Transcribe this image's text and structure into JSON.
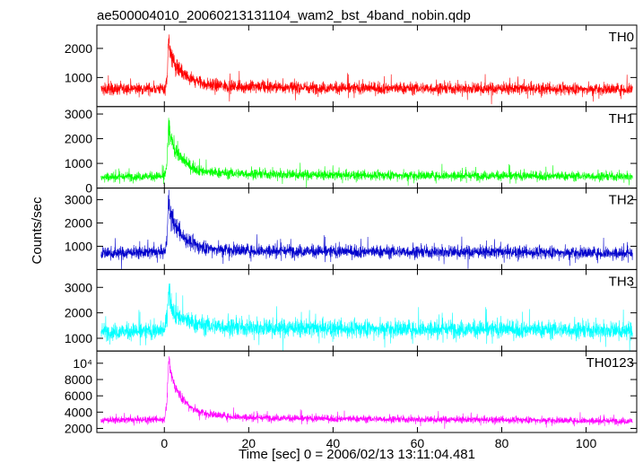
{
  "chart_data": {
    "type": "line",
    "title": "ae500004010_20060213131104_wam2_bst_4band_nobin.qdp",
    "xlabel": "Time [sec] 0 = 2006/02/13 13:11:04.481",
    "ylabel": "Counts/sec",
    "xlim": [
      -16,
      112
    ],
    "xticks": [
      0,
      20,
      40,
      60,
      80,
      100
    ],
    "xtick_labels": [
      "0",
      "20",
      "40",
      "60",
      "80",
      "100"
    ],
    "grid": false,
    "panels": [
      {
        "name": "TH0",
        "color": "#ff0000",
        "ylim": [
          0,
          2800
        ],
        "yticks": [
          1000,
          2000
        ],
        "ytick_labels": [
          "1000",
          "2000"
        ],
        "series": {
          "x": [
            -15,
            0,
            0.6,
            1,
            1.5,
            2.5,
            4,
            6,
            8,
            10,
            15,
            20,
            30,
            40,
            60,
            80,
            100,
            111
          ],
          "y": [
            600,
            620,
            900,
            2300,
            1750,
            1450,
            1150,
            950,
            850,
            760,
            700,
            680,
            660,
            640,
            630,
            620,
            600,
            600
          ]
        },
        "noise": 200
      },
      {
        "name": "TH1",
        "color": "#00ff00",
        "ylim": [
          0,
          3300
        ],
        "yticks": [
          0,
          1000,
          2000,
          3000
        ],
        "ytick_labels": [
          "0",
          "1000",
          "2000",
          "3000"
        ],
        "series": {
          "x": [
            -15,
            0,
            0.6,
            1,
            1.5,
            2.5,
            4,
            6,
            8,
            10,
            15,
            20,
            30,
            40,
            60,
            80,
            100,
            111
          ],
          "y": [
            450,
            480,
            900,
            2600,
            2000,
            1600,
            1200,
            900,
            750,
            650,
            600,
            580,
            550,
            520,
            510,
            500,
            480,
            470
          ]
        },
        "noise": 180
      },
      {
        "name": "TH2",
        "color": "#0000cc",
        "ylim": [
          0,
          3500
        ],
        "yticks": [
          1000,
          2000,
          3000
        ],
        "ytick_labels": [
          "1000",
          "2000",
          "3000"
        ],
        "series": {
          "x": [
            -15,
            0,
            0.6,
            1,
            1.5,
            2.5,
            4,
            6,
            8,
            10,
            15,
            20,
            30,
            40,
            60,
            80,
            100,
            111
          ],
          "y": [
            700,
            750,
            1200,
            3000,
            2400,
            1900,
            1500,
            1200,
            1000,
            900,
            850,
            820,
            800,
            780,
            760,
            750,
            720,
            700
          ]
        },
        "noise": 260
      },
      {
        "name": "TH3",
        "color": "#00ffff",
        "ylim": [
          500,
          3700
        ],
        "yticks": [
          1000,
          2000,
          3000
        ],
        "ytick_labels": [
          "1000",
          "2000",
          "3000"
        ],
        "series": {
          "x": [
            -15,
            0,
            0.6,
            1,
            1.5,
            2.5,
            4,
            6,
            8,
            10,
            15,
            20,
            30,
            40,
            60,
            80,
            100,
            111
          ],
          "y": [
            1250,
            1300,
            1800,
            3000,
            2400,
            2000,
            1800,
            1650,
            1550,
            1500,
            1450,
            1420,
            1400,
            1380,
            1370,
            1360,
            1330,
            1300
          ]
        },
        "noise": 330
      },
      {
        "name": "TH0123",
        "color": "#ff00ff",
        "ylim": [
          1500,
          11500
        ],
        "yticks": [
          2000,
          4000,
          6000,
          8000,
          10000
        ],
        "ytick_labels": [
          "2000",
          "4000",
          "6000",
          "8000",
          "10⁴"
        ],
        "series": {
          "x": [
            -15,
            0,
            0.6,
            1,
            1.5,
            2.5,
            4,
            6,
            8,
            10,
            15,
            20,
            30,
            40,
            60,
            80,
            100,
            111
          ],
          "y": [
            3000,
            3100,
            5000,
            10500,
            8800,
            7200,
            5800,
            4700,
            4100,
            3800,
            3500,
            3350,
            3250,
            3200,
            3100,
            3050,
            2950,
            2900
          ]
        },
        "noise": 420
      }
    ]
  }
}
